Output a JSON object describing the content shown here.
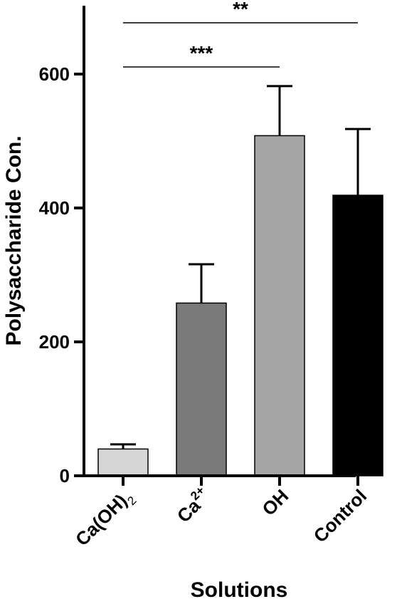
{
  "chart_data": {
    "type": "bar",
    "xlabel": "Solutions",
    "ylabel": "Polysaccharide Con.",
    "ylim": [
      0,
      700
    ],
    "yticks": [
      0,
      200,
      400,
      600
    ],
    "categories": [
      {
        "base": "Ca(OH)",
        "sup": "",
        "sub": "2"
      },
      {
        "base": "Ca",
        "sup": "2+",
        "sub": ""
      },
      {
        "base": "OH",
        "sup": "",
        "sub": ""
      },
      {
        "base": "Control",
        "sup": "",
        "sub": ""
      }
    ],
    "values": [
      40,
      258,
      508,
      419
    ],
    "errors": [
      7,
      58,
      74,
      99
    ],
    "bar_colors": [
      "#d6d6d6",
      "#7a7a7a",
      "#a6a6a6",
      "#000000"
    ],
    "significance": [
      {
        "from": 0,
        "to": 3,
        "label": "**"
      },
      {
        "from": 0,
        "to": 2,
        "label": "***"
      }
    ],
    "grid": false,
    "legend": "none"
  }
}
